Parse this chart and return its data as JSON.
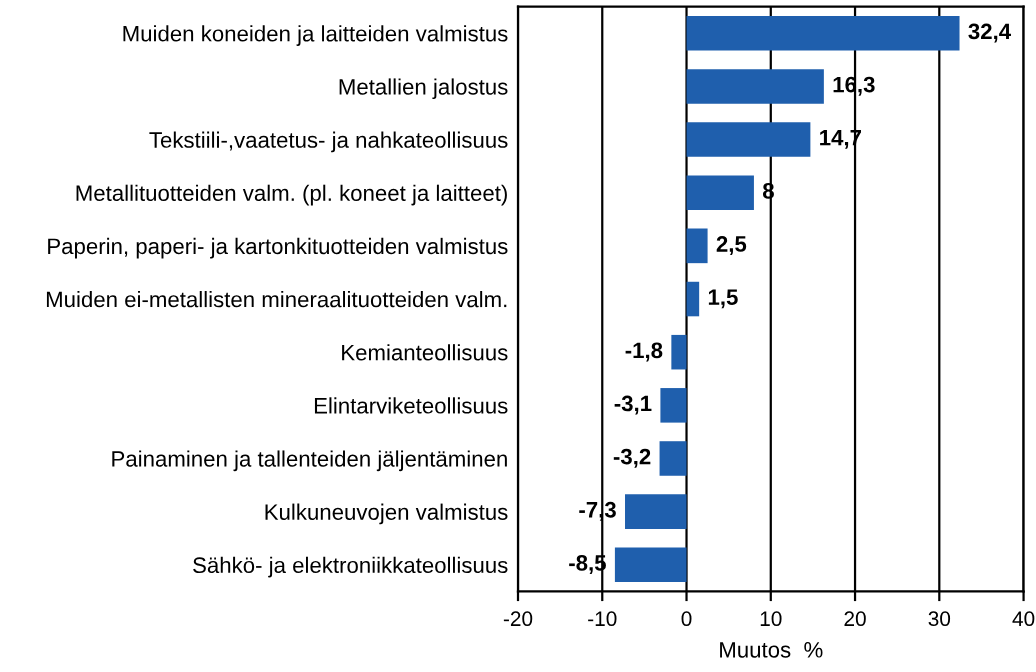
{
  "chart_data": {
    "type": "bar",
    "orientation": "horizontal",
    "xlabel": "Muutos  %",
    "categories": [
      "Muiden koneiden ja laitteiden valmistus",
      "Metallien jalostus",
      "Tekstiili-,vaatetus- ja nahkateollisuus",
      "Metallituotteiden valm. (pl. koneet ja laitteet)",
      "Paperin, paperi- ja kartonkituotteiden valmistus",
      "Muiden ei-metallisten mineraalituotteiden valm.",
      "Kemianteollisuus",
      "Elintarviketeollisuus",
      "Painaminen ja tallenteiden jäljentäminen",
      "Kulkuneuvojen valmistus",
      "Sähkö- ja elektroniikkateollisuus"
    ],
    "values": [
      32.4,
      16.3,
      14.7,
      8,
      2.5,
      1.5,
      -1.8,
      -3.1,
      -3.2,
      -7.3,
      -8.5
    ],
    "value_labels": [
      "32,4",
      "16,3",
      "14,7",
      "8",
      "2,5",
      "1,5",
      "-1,8",
      "-3,1",
      "-3,2",
      "-7,3",
      "-8,5"
    ],
    "color": "#1f5fad",
    "xlim": [
      -20,
      40
    ],
    "xticks": [
      -20,
      -10,
      0,
      10,
      20,
      30,
      40
    ],
    "grid": "x"
  }
}
